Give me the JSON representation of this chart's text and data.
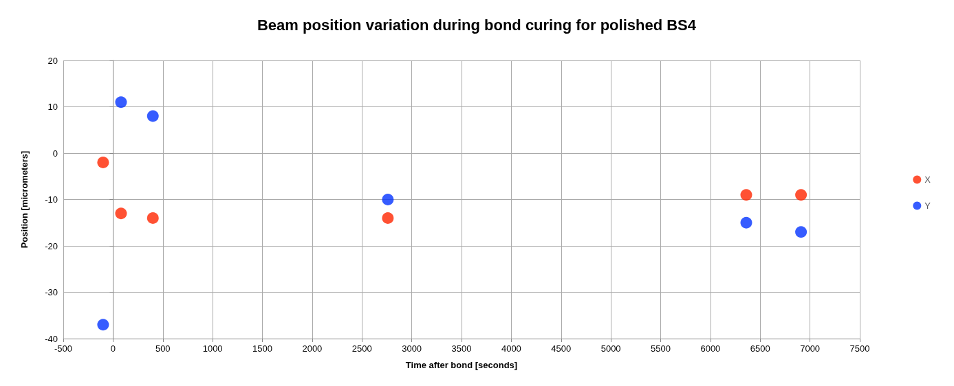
{
  "chart_data": {
    "type": "scatter",
    "title": "Beam position variation during bond curing for polished BS4",
    "xlabel": "Time after bond [seconds]",
    "ylabel": "Position [micrometers]",
    "series": [
      {
        "name": "X",
        "color": "#ff2600",
        "x": [
          -100,
          80,
          400,
          2760,
          6360,
          6910
        ],
        "values": [
          -2,
          -13,
          -14,
          -14,
          -9,
          -9
        ]
      },
      {
        "name": "Y",
        "color": "#0433ff",
        "x": [
          -100,
          80,
          400,
          2760,
          6360,
          6910
        ],
        "values": [
          -37,
          11,
          8,
          -10,
          -15,
          -17
        ]
      }
    ],
    "xlim": [
      -500,
      7500
    ],
    "xticks": [
      -500,
      0,
      500,
      1000,
      1500,
      2000,
      2500,
      3000,
      3500,
      4000,
      4500,
      5000,
      5500,
      6000,
      6500,
      7000,
      7500
    ],
    "ylim": [
      -40,
      20
    ],
    "yticks": [
      -40,
      -30,
      -20,
      -10,
      0,
      10,
      20
    ],
    "grid": true,
    "legend": "right",
    "marker": "circle"
  }
}
